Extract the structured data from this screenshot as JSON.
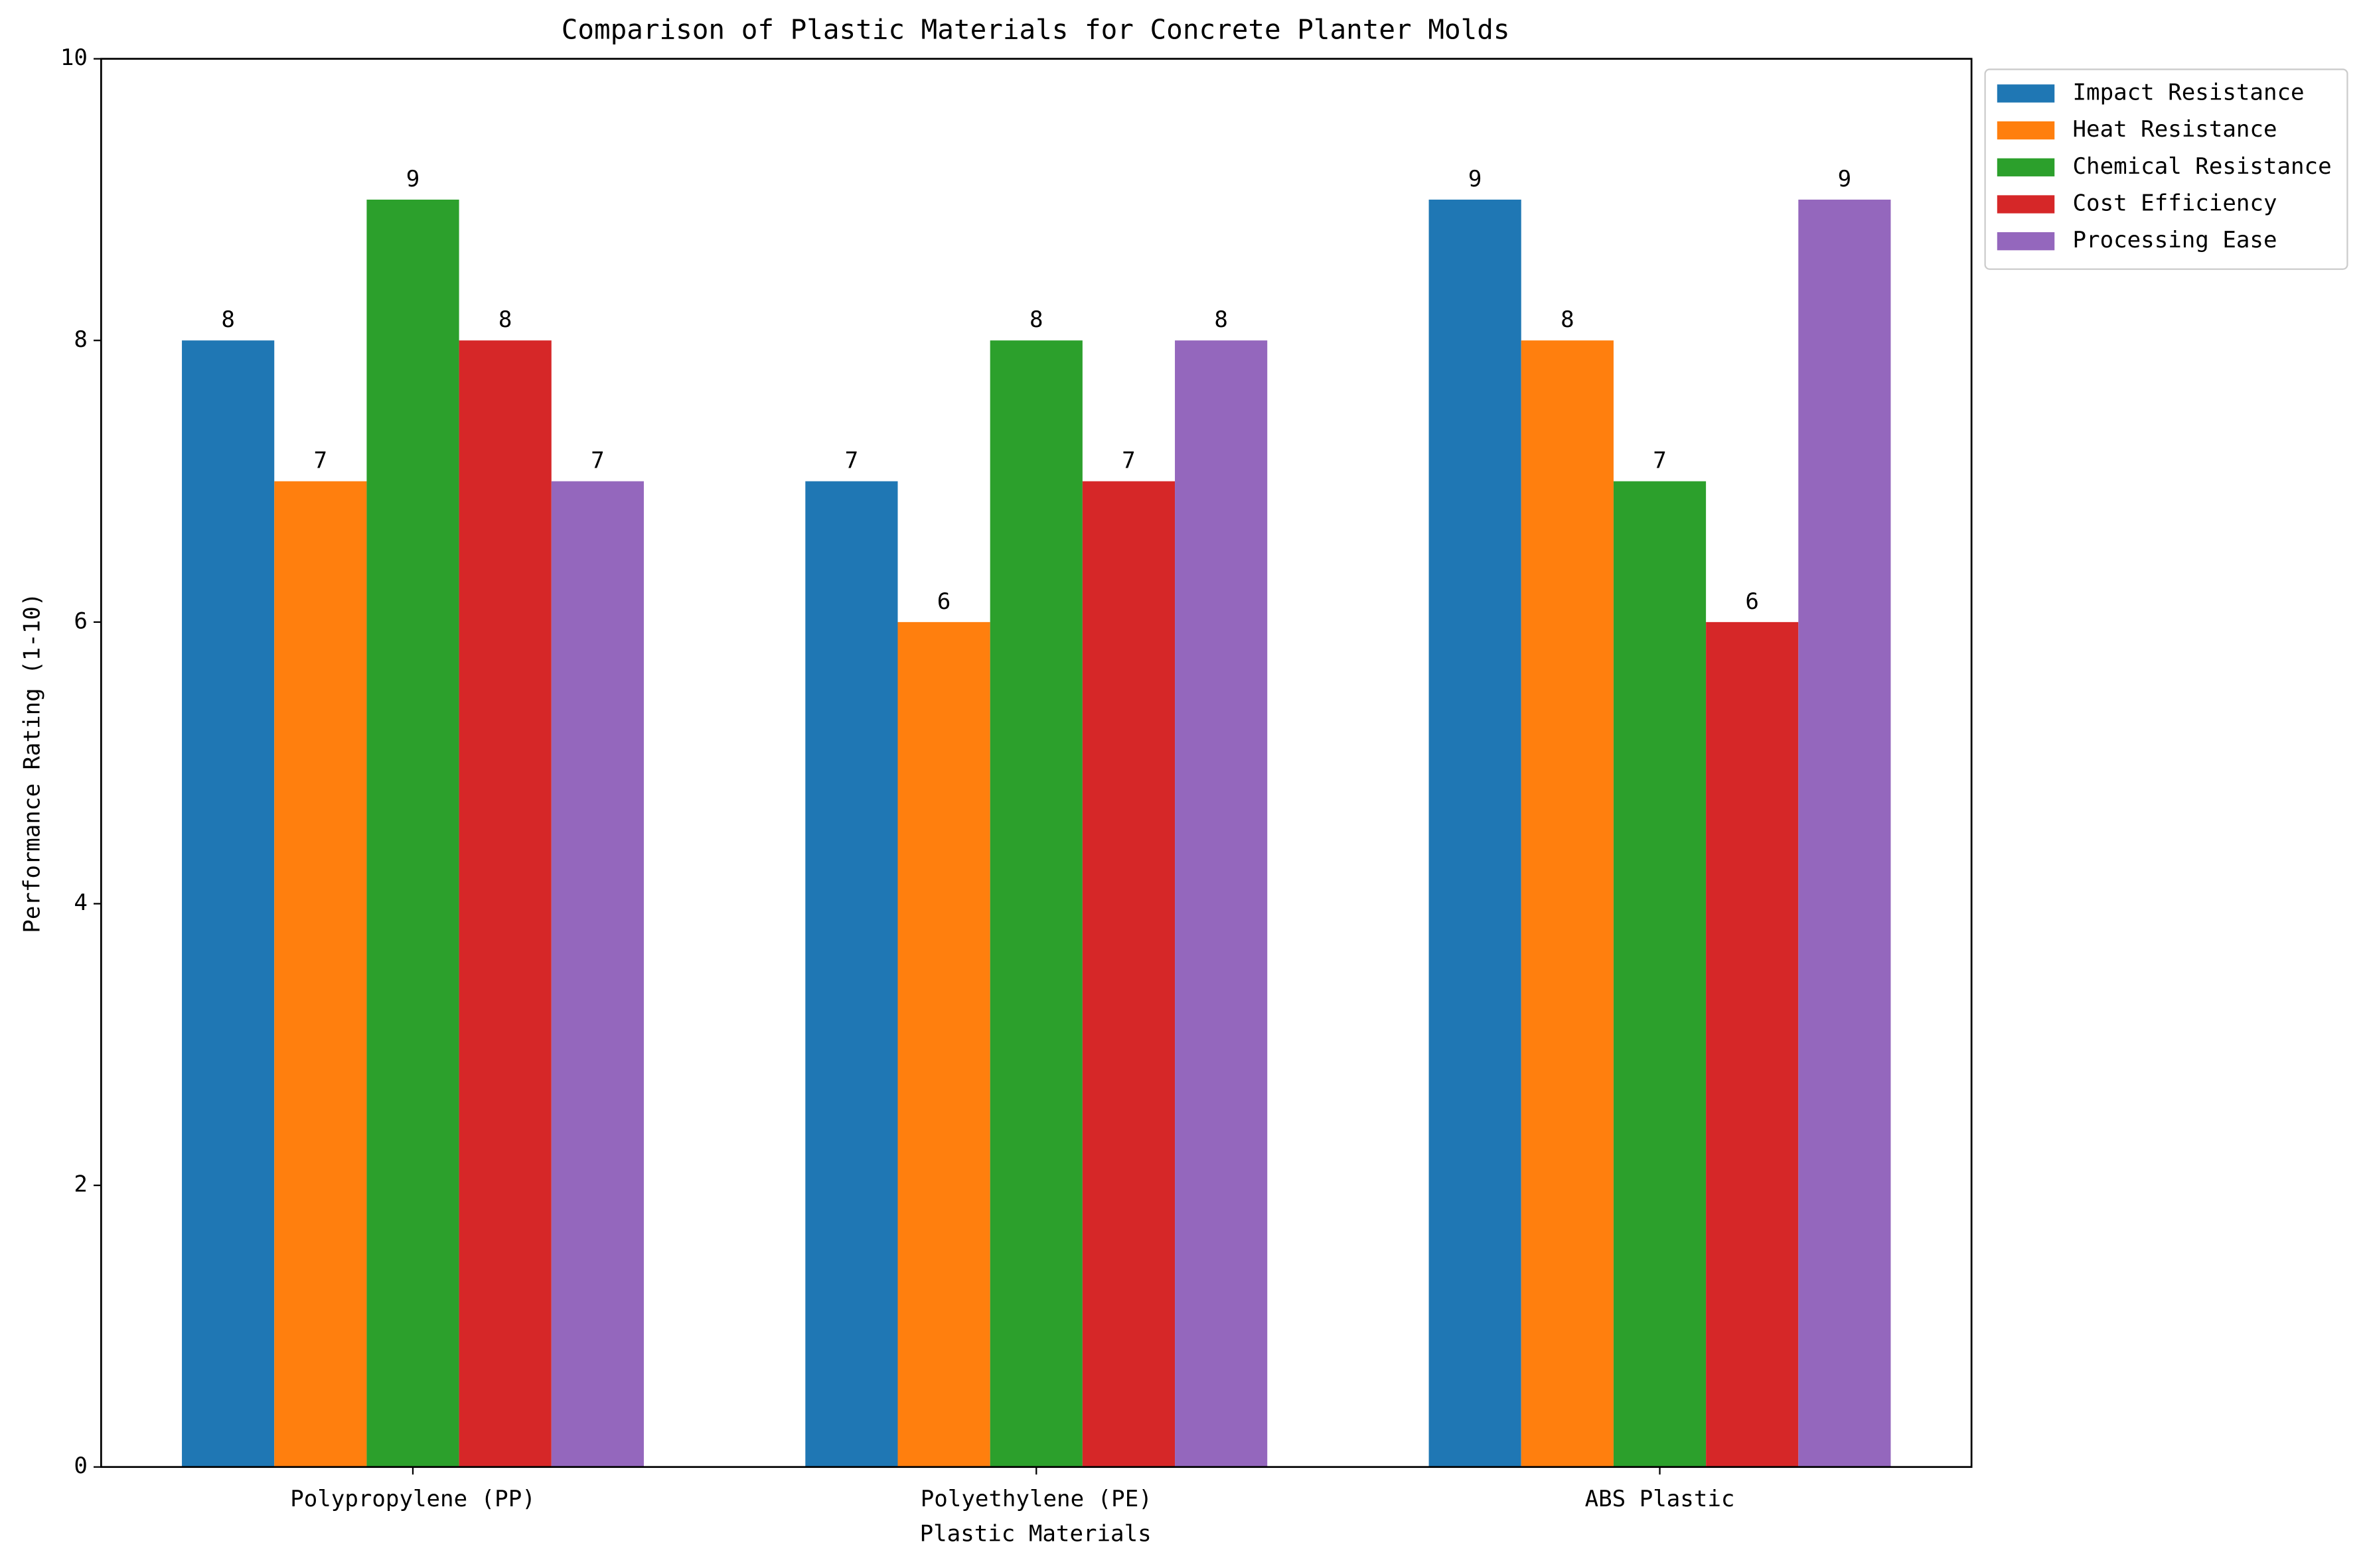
{
  "chart_data": {
    "type": "bar",
    "title": "Comparison of Plastic Materials for Concrete Planter Molds",
    "x_label": "Plastic Materials",
    "y_label": "Performance Rating (1-10)",
    "categories": [
      "Polypropylene (PP)",
      "Polyethylene (PE)",
      "ABS Plastic"
    ],
    "series": [
      {
        "name": "Impact Resistance",
        "color": "#1f77b4",
        "values": [
          8,
          7,
          9
        ]
      },
      {
        "name": "Heat Resistance",
        "color": "#ff7f0e",
        "values": [
          7,
          6,
          8
        ]
      },
      {
        "name": "Chemical Resistance",
        "color": "#2ca02c",
        "values": [
          9,
          8,
          7
        ]
      },
      {
        "name": "Cost Efficiency",
        "color": "#d62728",
        "values": [
          8,
          7,
          6
        ]
      },
      {
        "name": "Processing Ease",
        "color": "#9467bd",
        "values": [
          7,
          8,
          9
        ]
      }
    ],
    "ylim": [
      0,
      10
    ],
    "yticks": [
      0,
      2,
      4,
      6,
      8,
      10
    ],
    "grid": false,
    "legend": "upper right outside"
  }
}
